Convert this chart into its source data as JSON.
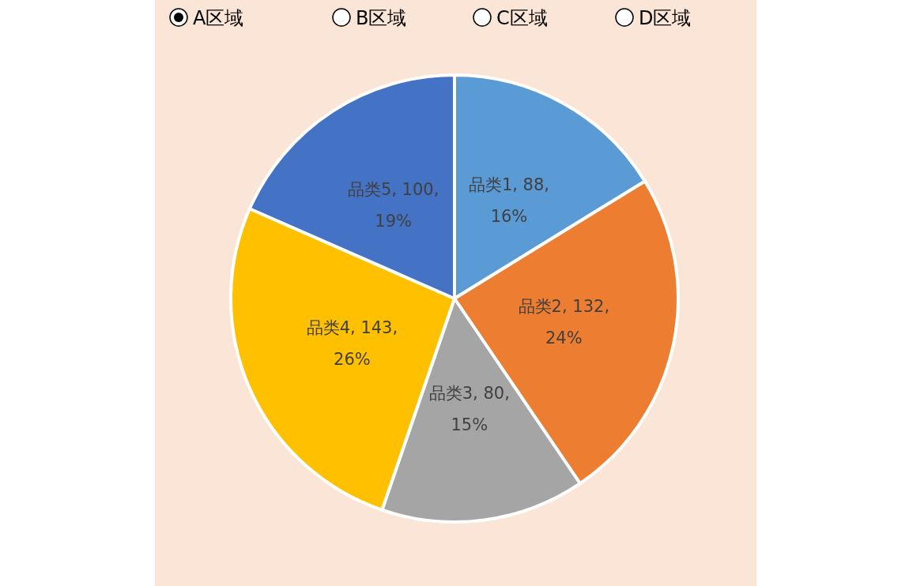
{
  "chart_data": {
    "type": "pie",
    "categories": [
      "品类1",
      "品类2",
      "品类3",
      "品类4",
      "品类5"
    ],
    "values": [
      88,
      132,
      80,
      143,
      100
    ],
    "colors": [
      "#5b9bd5",
      "#ed7d31",
      "#a5a5a5",
      "#ffc000",
      "#4472c4"
    ],
    "value_labels": [
      "88, 16%",
      "132, 24%",
      "80, 15%",
      "143, 26%",
      "100, 19%"
    ],
    "annotations": [
      "A区域",
      "B区域",
      "C区域",
      "D区域"
    ]
  }
}
